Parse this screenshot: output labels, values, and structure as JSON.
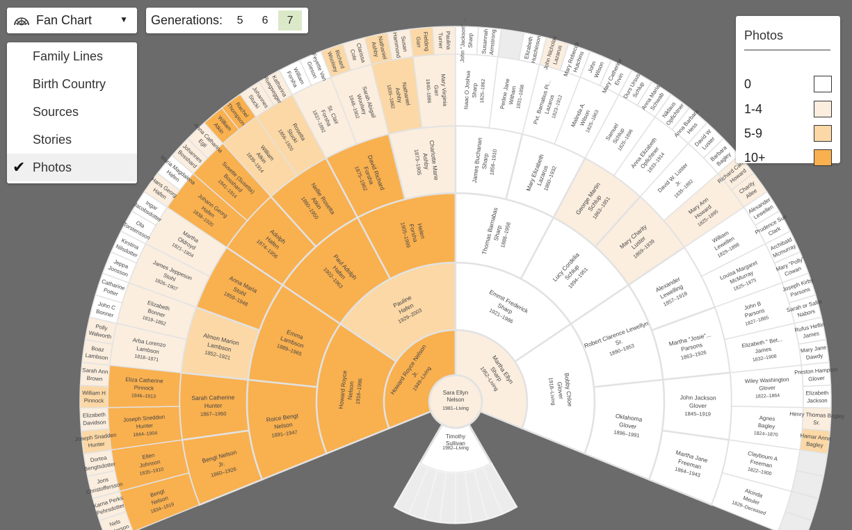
{
  "toolbar": {
    "chart_type_label": "Fan Chart",
    "chart_type_icon": "fan-chart-icon",
    "generations_label": "Generations:",
    "generation_options": [
      "5",
      "6",
      "7"
    ],
    "selected_generation": "7"
  },
  "view_menu": {
    "items": [
      "Family Lines",
      "Birth Country",
      "Sources",
      "Stories",
      "Photos"
    ],
    "selected": "Photos"
  },
  "legend": {
    "title": "Photos",
    "items": [
      {
        "label": "0",
        "color": "#ffffff"
      },
      {
        "label": "1-4",
        "color": "#fbeedf"
      },
      {
        "label": "5-9",
        "color": "#fbd8a6"
      },
      {
        "label": "10+",
        "color": "#f9b04f"
      }
    ]
  },
  "fan": {
    "center_person": {
      "name": "Sara Ellyn Nelson",
      "dates": "1981–Living"
    },
    "spouse": {
      "name": "Timothy Sullivan",
      "dates": "1982–Living"
    },
    "rings": [
      [
        {
          "name": "Howard Royce Nelson Jr.",
          "dates": "1949–Living",
          "level": 3
        },
        {
          "name": "Martha Ellyn Sharp",
          "dates": "1952–Living",
          "level": 1
        }
      ],
      [
        {
          "name": "Howard Royce Nelson",
          "dates": "1916–1996",
          "level": 3
        },
        {
          "name": "Pauline Hafen",
          "dates": "1929–2003",
          "level": 2
        },
        {
          "name": "Emmit Frederick Sharp",
          "dates": "1921–1986",
          "level": 0
        },
        {
          "name": "Bobby Chloe Glover",
          "dates": "1918–Living",
          "level": 0
        }
      ],
      [
        {
          "name": "Roice Bengt Nelson",
          "dates": "1891–1947",
          "level": 3
        },
        {
          "name": "Emma Lambson",
          "dates": "1889–1965",
          "level": 3
        },
        {
          "name": "Paul Adolph Hafen",
          "dates": "1902–1963",
          "level": 3
        },
        {
          "name": "Helen Forsha",
          "dates": "1905–1999",
          "level": 3
        },
        {
          "name": "Thomas Barnabas Sharp",
          "dates": "1888–1958",
          "level": 0
        },
        {
          "name": "Lucy Cordelia Schlup",
          "dates": "1894–1951",
          "level": 0
        },
        {
          "name": "Robert Clarence Lewellyn Sr.",
          "dates": "1890–1953",
          "level": 0
        },
        {
          "name": "Oklahoma Glover",
          "dates": "1896–1991",
          "level": 0
        }
      ],
      [
        {
          "name": "Bengt Nelson Jr.",
          "dates": "1860–1926",
          "level": 3
        },
        {
          "name": "Sarah Catherine Hunter",
          "dates": "1867–1950",
          "level": 3
        },
        {
          "name": "Almon Marion Lambson",
          "dates": "1852–1921",
          "level": 2
        },
        {
          "name": "Anna Maria Stohl",
          "dates": "1859–1948",
          "level": 3
        },
        {
          "name": "Adolph Hafen",
          "dates": "1874–1956",
          "level": 3
        },
        {
          "name": "Nellie Rosetta Atkin",
          "dates": "1880–1950",
          "level": 3
        },
        {
          "name": "David Richard Forsha",
          "dates": "1875–1962",
          "level": 3
        },
        {
          "name": "Charlotte Marie Ashby",
          "dates": "1873–1905",
          "level": 1
        },
        {
          "name": "James Buchanan Sharp",
          "dates": "1856–1910",
          "level": 0
        },
        {
          "name": "Mary Elizabeth Lazarus",
          "dates": "1860–1932",
          "level": 0
        },
        {
          "name": "George Martin Schlup",
          "dates": "1863–1951",
          "level": 1
        },
        {
          "name": "Mary Charity Luster",
          "dates": "1869–1939",
          "level": 1
        },
        {
          "name": "Alexander Lewelling",
          "dates": "1857–1918",
          "level": 0
        },
        {
          "name": "Martha \"Josie\"... Parsons",
          "dates": "1863–1926",
          "level": 0
        },
        {
          "name": "John Jackson Glover",
          "dates": "1845–1919",
          "level": 0
        },
        {
          "name": "Martha Jane Freeman",
          "dates": "1864–1943",
          "level": 0
        }
      ],
      [
        {
          "name": "Bengt Nelson",
          "dates": "1834–1919",
          "level": 3
        },
        {
          "name": "Ellen Johnson",
          "dates": "1835–1910",
          "level": 3
        },
        {
          "name": "Joseph Sneddon Hunter",
          "dates": "1844–1904",
          "level": 3
        },
        {
          "name": "Eliza Catherine Pinnock",
          "dates": "1846–1913",
          "level": 3
        },
        {
          "name": "Arba Lorenzo Lambson",
          "dates": "1818–1871",
          "level": 1
        },
        {
          "name": "Elizabeth Bonner",
          "dates": "1819–1852",
          "level": 1
        },
        {
          "name": "James Jeppeson Stohl",
          "dates": "1826–1907",
          "level": 1
        },
        {
          "name": "Martha Oldroyd",
          "dates": "1821–1904",
          "level": 1
        },
        {
          "name": "Johann Georg Hafen",
          "dates": "1838–1920",
          "level": 3
        },
        {
          "name": "Susette (Susetta) Bosshard",
          "dates": "1841–1914",
          "level": 3
        },
        {
          "name": "William Atkin",
          "dates": "1839–1914",
          "level": 2
        },
        {
          "name": "Rosetta Stucki",
          "dates": "1856–1920",
          "level": 2
        },
        {
          "name": "St. Clair Forsha",
          "dates": "1837–1892",
          "level": 1
        },
        {
          "name": "Sarah Abigail Woolsey",
          "dates": "1848–1902",
          "level": 1
        },
        {
          "name": "Nathaniel Ashby",
          "dates": "1835–1882",
          "level": 2
        },
        {
          "name": "Mary Virginia Garr",
          "dates": "1840–1886",
          "level": 1
        },
        {
          "name": "Isaac O Joshua Sharp",
          "dates": "1825–1862",
          "level": 0
        },
        {
          "name": "Perline Jane Witham",
          "dates": "1831–1898",
          "level": 0
        },
        {
          "name": "Pvt. Barnabus Pi... Lazarus",
          "dates": "1823–1912",
          "level": 0
        },
        {
          "name": "Malinda A. Wilson",
          "dates": "1825–1863",
          "level": 0
        },
        {
          "name": "Samuel Schlup",
          "dates": "1825–1896",
          "level": 0
        },
        {
          "name": "Anna Elizabeth Opfichtner",
          "dates": "1833–1914",
          "level": 0
        },
        {
          "name": "David W. Luster Jr.",
          "dates": "1835–1892",
          "level": 0
        },
        {
          "name": "Mary Ann Howard",
          "dates": "1825–1895",
          "level": 1
        },
        {
          "name": "William Lewellen",
          "dates": "1829–1898",
          "level": 0
        },
        {
          "name": "Louisa Margaret McMurray",
          "dates": "1825–1875",
          "level": 0
        },
        {
          "name": "John B Parsons",
          "dates": "1827–1865",
          "level": 0
        },
        {
          "name": "Elizabeth \" Bet... James",
          "dates": "1832–1908",
          "level": 0
        },
        {
          "name": "Wiley Washington Glover",
          "dates": "1822–1864",
          "level": 0
        },
        {
          "name": "Agnes Bagley",
          "dates": "1824–1870",
          "level": 0
        },
        {
          "name": "Claybourn A Freeman",
          "dates": "1822–1900",
          "level": 0
        },
        {
          "name": "Alcinda Meuler",
          "dates": "1829–Deceased",
          "level": 0
        }
      ],
      [
        {
          "name": "Nels Anderson",
          "level": 1
        },
        {
          "name": "Karna Perks Pehrsdotter",
          "level": 1
        },
        {
          "name": "Jons Christoffersson",
          "level": 1
        },
        {
          "name": "Dortea Bengtsdotter",
          "level": 1
        },
        {
          "name": "Joseph Snadden Hunter",
          "level": 2
        },
        {
          "name": "Elizabeth Davidson",
          "level": 1
        },
        {
          "name": "William H Pinnock",
          "level": 2
        },
        {
          "name": "Sarah Ann Brown",
          "level": 1
        },
        {
          "name": "Boaz Lambson",
          "level": 1
        },
        {
          "name": "Polly Walworth",
          "level": 1
        },
        {
          "name": "John C Bonner",
          "level": 0
        },
        {
          "name": "Catharine Potter",
          "level": 0
        },
        {
          "name": "Jeppa Jonsson",
          "level": 0
        },
        {
          "name": "Kirstina Nilsdotter",
          "level": 0
        },
        {
          "name": "Ola Torstensson",
          "level": 0
        },
        {
          "name": "Ingar Jacobsdotter",
          "level": 0
        },
        {
          "name": "Hans Georg Hafen",
          "level": 1
        },
        {
          "name": "Maria Magdalena Hafen",
          "level": 0
        },
        {
          "name": "Johannes Bosshard",
          "level": 1
        },
        {
          "name": "Anna Catharina Egli",
          "level": 1
        },
        {
          "name": "William Atkin",
          "level": 3
        },
        {
          "name": "Rachel Thompson",
          "level": 3
        },
        {
          "name": "Johannes Stucki",
          "level": 1
        },
        {
          "name": "Katharina Ruegsegger",
          "level": 1
        },
        {
          "name": "William Forsha",
          "level": 0
        },
        {
          "name": "Feyette Van Gieson",
          "level": 0
        },
        {
          "name": "Richard Woolsey",
          "level": 2
        },
        {
          "name": "Clarissa Cole",
          "level": 1
        },
        {
          "name": "Nathaniel Ashby",
          "level": 2
        },
        {
          "name": "Susan Hammond",
          "level": 1
        },
        {
          "name": "Fielding Garr",
          "level": 2
        },
        {
          "name": "Paulina Turner",
          "level": 1
        },
        {
          "name": "John \"Jackson\" ... Sharp",
          "level": 0
        },
        {
          "name": "Susannah Armstrong",
          "level": 0
        },
        {
          "name": "",
          "level": -1
        },
        {
          "name": "Elizabeth Hutchinson",
          "level": 0
        },
        {
          "name": "John Nicholas Lazarus",
          "level": 1
        },
        {
          "name": "Mary Rebecca Hutchins",
          "level": 0
        },
        {
          "name": "John Wilson",
          "level": 0
        },
        {
          "name": "Mary Catherine Ervin",
          "level": 0
        },
        {
          "name": "Durs Ursus Schlup",
          "level": 0
        },
        {
          "name": "Anna Maria Schwab",
          "level": 0
        },
        {
          "name": "Niklaus Opfichtner",
          "level": 0
        },
        {
          "name": "Anna Barbara Hess",
          "level": 0
        },
        {
          "name": "David W Luster",
          "level": 0
        },
        {
          "name": "Barbara Bagley",
          "level": 0
        },
        {
          "name": "Richard Carrick Howard",
          "level": 1
        },
        {
          "name": "Charity Allee",
          "level": 1
        },
        {
          "name": "Alexander Lewellen",
          "level": 0
        },
        {
          "name": "Prudence Sue Clark",
          "level": 0
        },
        {
          "name": "Archibald Mcmurray",
          "level": 0
        },
        {
          "name": "Mary \"Polly\" Cowan",
          "level": 0
        },
        {
          "name": "Joseph Kirby Parsons",
          "level": 0
        },
        {
          "name": "Sarah or Sallie Nabors",
          "level": 0
        },
        {
          "name": "Rufus Heflin James",
          "level": 0
        },
        {
          "name": "Mary Jane Dawdy",
          "level": 0
        },
        {
          "name": "Preston Hampton Glover",
          "level": 0
        },
        {
          "name": "Elizabeth Jackson",
          "level": 0
        },
        {
          "name": "Henry Thomas Bagley Sr.",
          "level": 1
        },
        {
          "name": "Hamar Anna Bagley",
          "level": 2
        },
        {
          "name": "",
          "level": -1
        },
        {
          "name": "",
          "level": -1
        },
        {
          "name": "",
          "level": -1
        },
        {
          "name": "",
          "level": -1
        }
      ]
    ]
  }
}
